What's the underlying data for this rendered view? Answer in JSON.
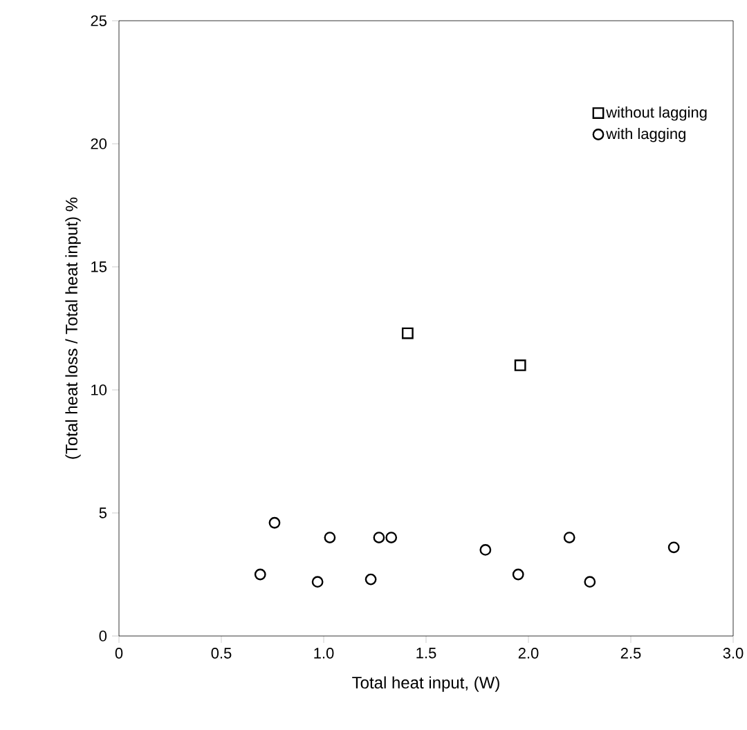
{
  "chart_data": {
    "type": "scatter",
    "xlabel": "Total heat input, (W)",
    "ylabel": "(Total heat loss / Total heat input) %",
    "xlim": [
      0,
      3
    ],
    "ylim": [
      0,
      25
    ],
    "xticks": [
      0,
      0.5,
      {
        "value": 1,
        "label": "1.0"
      },
      1.5,
      {
        "value": 2,
        "label": "2.0"
      },
      2.5,
      {
        "value": 3,
        "label": "3.0"
      }
    ],
    "yticks": [
      0,
      5,
      10,
      15,
      20,
      25
    ],
    "legend": "top right",
    "grid": false,
    "series": [
      {
        "name": "without lagging",
        "color": "#000000",
        "marker": "square",
        "x": [
          1.41,
          1.96
        ],
        "values": [
          12.3,
          11.0
        ]
      },
      {
        "name": "with lagging",
        "color": "#000000",
        "marker": "circle",
        "x": [
          0.69,
          0.76,
          0.97,
          1.03,
          1.23,
          1.27,
          1.33,
          1.79,
          1.95,
          2.2,
          2.3,
          2.71
        ],
        "values": [
          2.5,
          4.6,
          2.2,
          4.0,
          2.3,
          4.0,
          4.0,
          3.5,
          2.5,
          4.0,
          2.2,
          3.6
        ]
      }
    ]
  }
}
